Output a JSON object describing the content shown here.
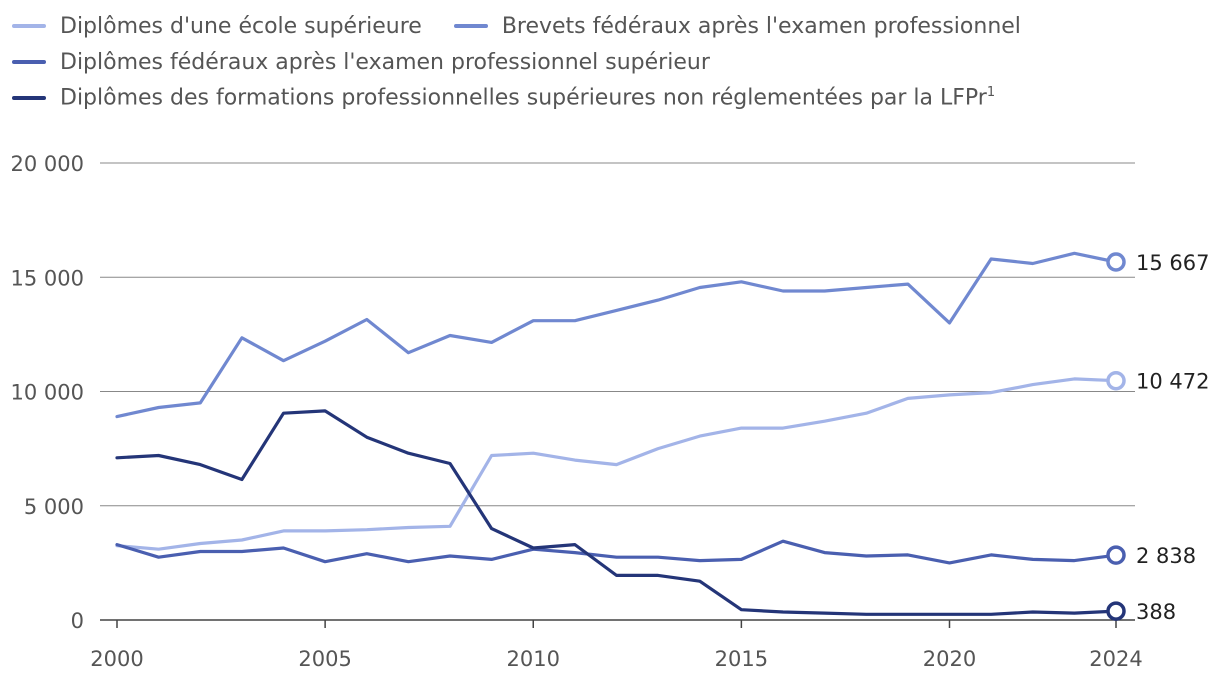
{
  "chart_data": {
    "type": "line",
    "title": "",
    "xlabel": "",
    "ylabel": "",
    "x": [
      2000,
      2001,
      2002,
      2003,
      2004,
      2005,
      2006,
      2007,
      2008,
      2009,
      2010,
      2011,
      2012,
      2013,
      2014,
      2015,
      2016,
      2017,
      2018,
      2019,
      2020,
      2021,
      2022,
      2023,
      2024
    ],
    "xticks": [
      2000,
      2005,
      2010,
      2015,
      2020,
      2024
    ],
    "xtick_labels": [
      "2000",
      "2005",
      "2010",
      "2015",
      "2020",
      "2024"
    ],
    "xlim": [
      2000,
      2024
    ],
    "ylim": [
      0,
      20000
    ],
    "yticks": [
      0,
      5000,
      10000,
      15000,
      20000
    ],
    "ytick_labels": [
      "0",
      "5 000",
      "10 000",
      "15 000",
      "20 000"
    ],
    "grid": true,
    "legend_position": "top-left",
    "series": [
      {
        "name": "Diplômes d'une école supérieure",
        "color": "#a3b4e8",
        "values": [
          3250,
          3100,
          3350,
          3500,
          3900,
          3900,
          3950,
          4050,
          4100,
          7200,
          7300,
          7000,
          6800,
          7500,
          8050,
          8400,
          8400,
          8700,
          9050,
          9700,
          9850,
          9950,
          10300,
          10550,
          10472
        ],
        "end_label": "10 472"
      },
      {
        "name": "Brevets fédéraux après l'examen professionnel",
        "color": "#7088d0",
        "values": [
          8900,
          9300,
          9500,
          12350,
          11350,
          12200,
          13150,
          11700,
          12450,
          12150,
          13100,
          13100,
          13550,
          14000,
          14550,
          14800,
          14400,
          14400,
          14550,
          14700,
          13000,
          15800,
          15600,
          16050,
          15667
        ],
        "end_label": "15 667"
      },
      {
        "name": "Diplômes fédéraux après l'examen professionnel supérieur",
        "color": "#4a5fb0",
        "values": [
          3300,
          2750,
          3000,
          3000,
          3150,
          2550,
          2900,
          2550,
          2800,
          2650,
          3100,
          2950,
          2750,
          2750,
          2600,
          2650,
          3450,
          2950,
          2800,
          2850,
          2500,
          2850,
          2650,
          2600,
          2838
        ],
        "end_label": "2 838"
      },
      {
        "name": "Diplômes des formations professionnelles supérieures non réglementées par la LFPr",
        "superscript": "1",
        "color": "#243578",
        "values": [
          7100,
          7200,
          6800,
          6150,
          9050,
          9150,
          8000,
          7300,
          6850,
          4000,
          3150,
          3300,
          1950,
          1950,
          1700,
          450,
          350,
          300,
          250,
          250,
          250,
          250,
          350,
          300,
          388
        ],
        "end_label": "388"
      }
    ]
  }
}
